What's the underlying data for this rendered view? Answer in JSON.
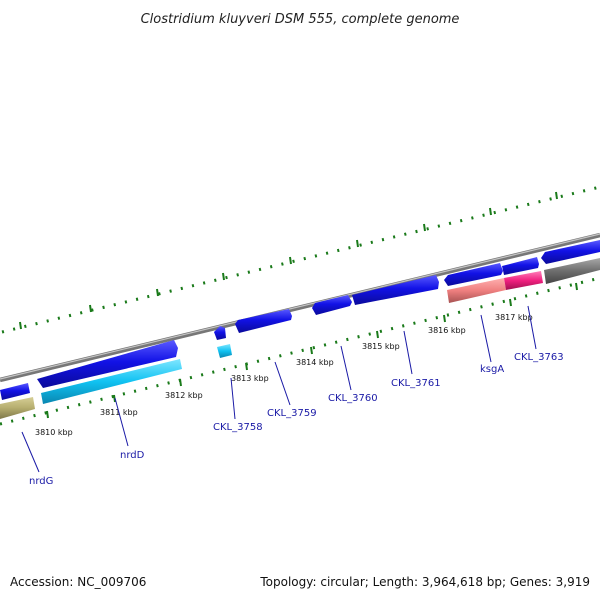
{
  "title": "Clostridium kluyveri DSM 555, complete genome",
  "footer": {
    "accession": "Accession: NC_009706",
    "summary": "Topology: circular; Length: 3,964,618 bp; Genes: 3,919"
  },
  "tick_labels": [
    "3810 kbp",
    "3811 kbp",
    "3812 kbp",
    "3813 kbp",
    "3814 kbp",
    "3815 kbp",
    "3816 kbp",
    "3817 kbp"
  ],
  "gene_labels": [
    "nrdG",
    "nrdD",
    "CKL_3758",
    "CKL_3759",
    "CKL_3760",
    "CKL_3761",
    "ksgA",
    "CKL_3763"
  ],
  "colors": {
    "forward_gene": "#1010e0",
    "highlight_gene": "#00c0f0",
    "olive_gene": "#b5ad6e",
    "pink_gene": "#ef7f7f",
    "magenta_gene": "#f0207f",
    "gray_gene": "#6e6e6e",
    "backbone": "#888888",
    "tick": "#1a7a1a",
    "label": "#1a1aa6"
  }
}
